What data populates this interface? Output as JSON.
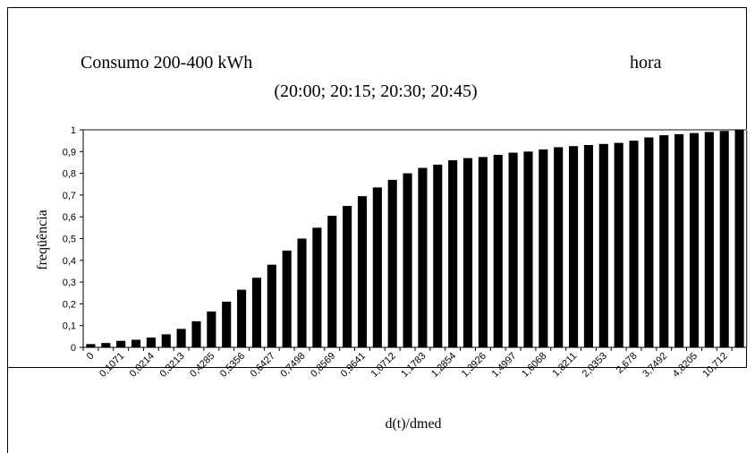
{
  "chart_data": {
    "type": "bar",
    "title": "Consumo 200-400 kWh",
    "title_right": "hora",
    "subtitle": "(20:00; 20:15; 20:30; 20:45)",
    "ylabel": "freqüência",
    "xlabel": "d(t)/dmed",
    "categories": [
      "0",
      null,
      "0,1071",
      null,
      "0,0214",
      null,
      "0,3213",
      null,
      "0,4285",
      null,
      "0,5356",
      null,
      "0,6427",
      null,
      "0,7498",
      null,
      "0,8569",
      null,
      "0,9641",
      null,
      "1,0712",
      null,
      "1,1783",
      null,
      "1,2854",
      null,
      "1,3926",
      null,
      "1,4997",
      null,
      "1,6068",
      null,
      "1,8211",
      null,
      "2,0353",
      null,
      "2,678",
      null,
      "3,7492",
      null,
      "4,8205",
      null,
      "10,712",
      null
    ],
    "values": [
      0.015,
      0.02,
      0.03,
      0.035,
      0.045,
      0.06,
      0.085,
      0.12,
      0.165,
      0.21,
      0.265,
      0.32,
      0.38,
      0.445,
      0.5,
      0.55,
      0.605,
      0.65,
      0.695,
      0.735,
      0.77,
      0.8,
      0.825,
      0.84,
      0.86,
      0.87,
      0.875,
      0.885,
      0.895,
      0.9,
      0.91,
      0.92,
      0.925,
      0.93,
      0.935,
      0.94,
      0.95,
      0.965,
      0.975,
      0.98,
      0.985,
      0.99,
      0.995,
      1.0
    ],
    "color": "#000000",
    "ylim": [
      0,
      1
    ],
    "yticks": [
      {
        "value": 0,
        "label": "0"
      },
      {
        "value": 0.1,
        "label": "0,1"
      },
      {
        "value": 0.2,
        "label": "0,2"
      },
      {
        "value": 0.3,
        "label": "0,3"
      },
      {
        "value": 0.4,
        "label": "0,4"
      },
      {
        "value": 0.5,
        "label": "0,5"
      },
      {
        "value": 0.6,
        "label": "0,6"
      },
      {
        "value": 0.7,
        "label": "0,7"
      },
      {
        "value": 0.8,
        "label": "0,8"
      },
      {
        "value": 0.9,
        "label": "0,9"
      },
      {
        "value": 1,
        "label": "1"
      }
    ],
    "grid": false
  }
}
